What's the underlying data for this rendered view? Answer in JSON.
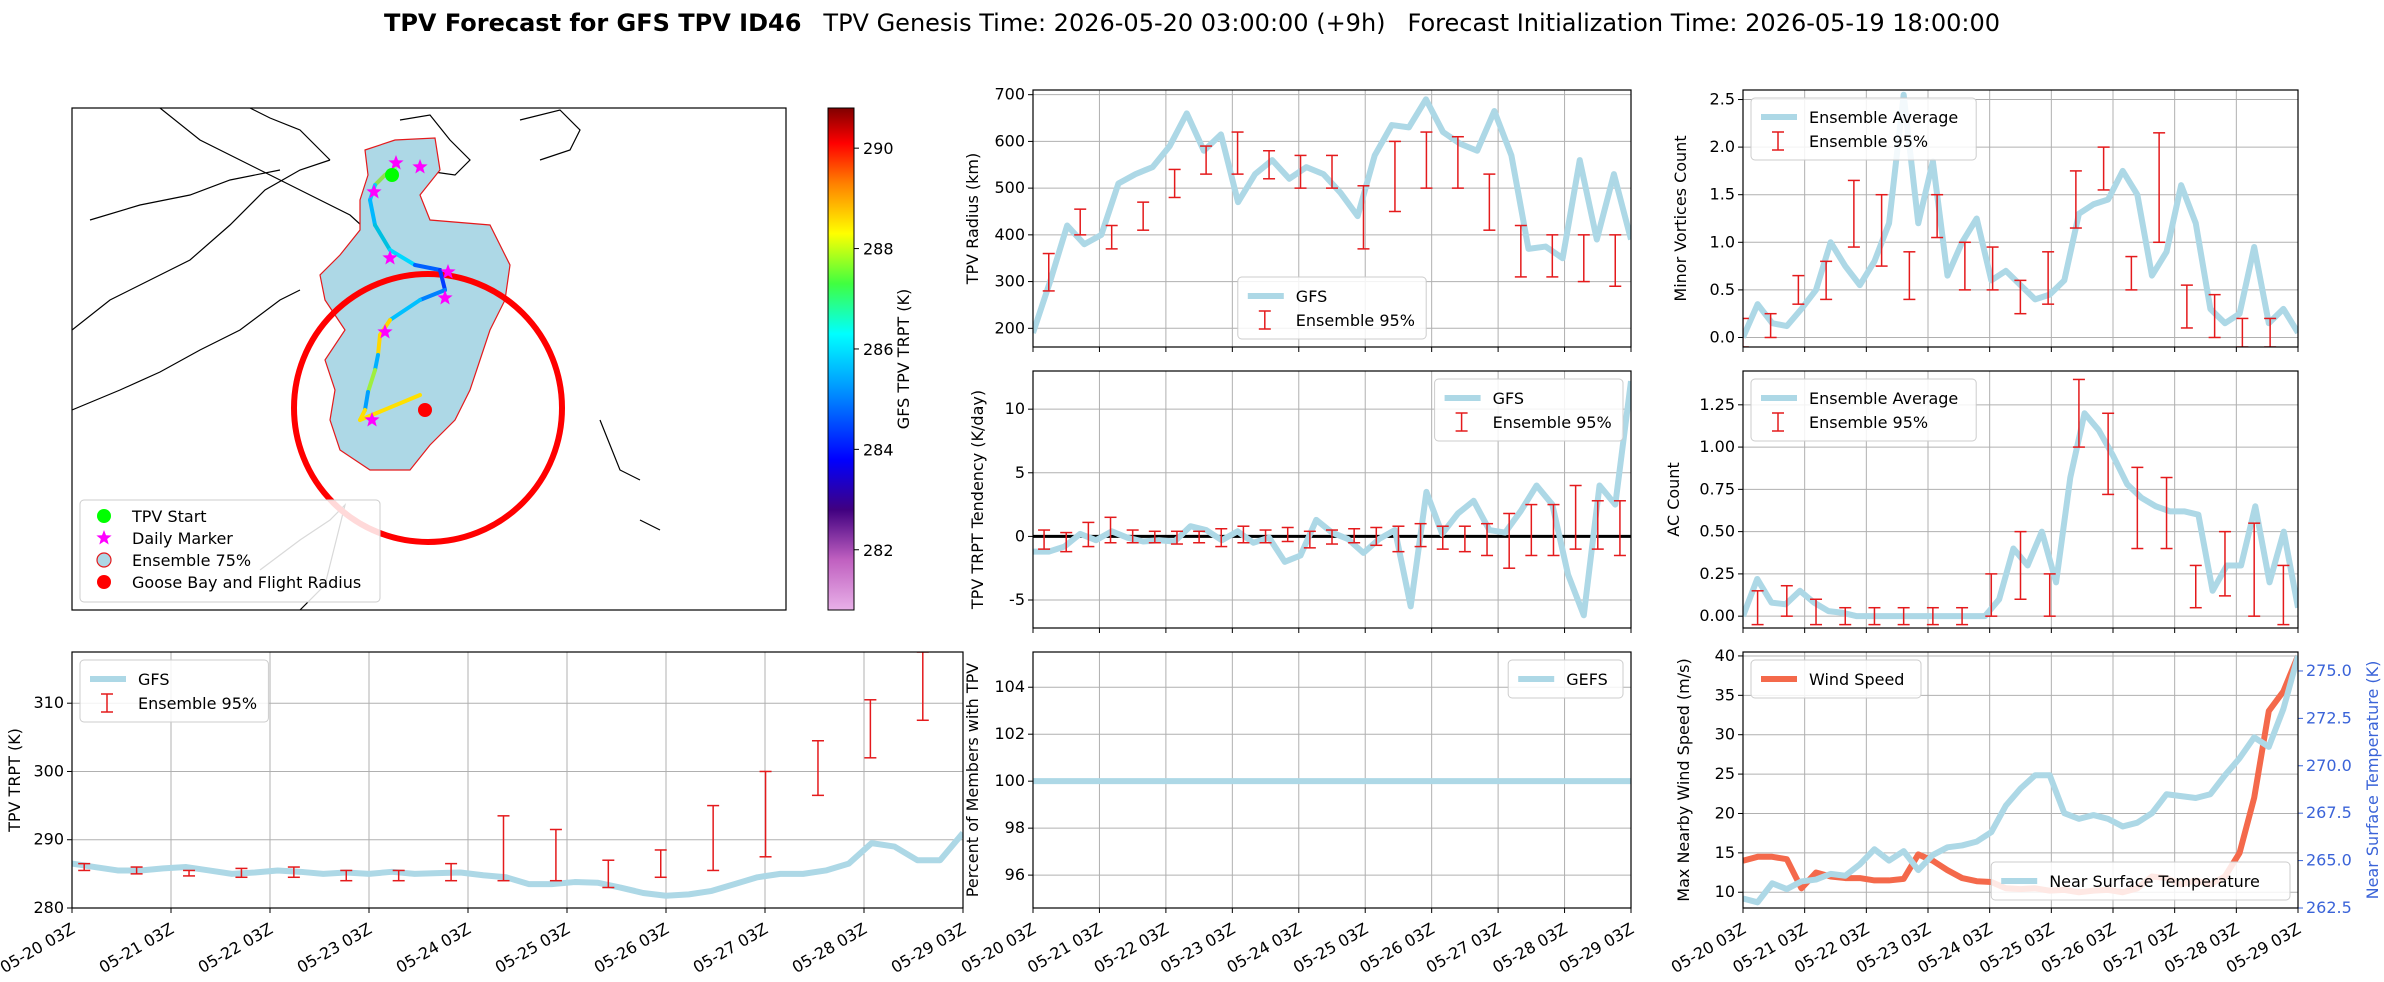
{
  "header": {
    "title_bold": "TPV Forecast for GFS TPV ID46",
    "title_genesis": "TPV Genesis Time: 2026-05-20 03:00:00 (+9h)",
    "title_init": "Forecast Initialization Time: 2026-05-19 18:00:00"
  },
  "colors": {
    "gfs_line": "#add8e6",
    "error_bar": "#e41a1c",
    "wind_line": "#f4694b",
    "temp_axis": "#3a63d8",
    "flight_circle": "#ff0000",
    "ensemble_fill": "#add8e6"
  },
  "time_axis": {
    "ticks": [
      "05-20 03Z",
      "05-21 03Z",
      "05-22 03Z",
      "05-23 03Z",
      "05-24 03Z",
      "05-25 03Z",
      "05-26 03Z",
      "05-27 03Z",
      "05-28 03Z",
      "05-29 03Z"
    ]
  },
  "map": {
    "colorbar_label": "GFS TPV TRPT (K)",
    "colorbar_range": [
      280.8,
      290.8
    ],
    "colorbar_ticks": [
      "282",
      "284",
      "286",
      "288",
      "290"
    ],
    "icons": [
      "tpv-start-icon",
      "daily-marker-icon",
      "ensemble-75-icon",
      "goose-bay-icon"
    ],
    "legend": {
      "tpv_start": "TPV Start",
      "daily_marker": "Daily Marker",
      "ensemble_75": "Ensemble 75%",
      "goose_bay": "Goose Bay and Flight Radius"
    }
  },
  "chart_data": [
    {
      "id": "tpv-radius",
      "type": "line",
      "ylabel": "TPV Radius (km)",
      "ylim": [
        160,
        710
      ],
      "yticks": [
        200,
        300,
        400,
        500,
        600,
        700
      ],
      "legend": [
        "GFS",
        "Ensemble 95%"
      ],
      "legend_position": "lower-center",
      "series": [
        {
          "name": "GFS",
          "values": [
            190,
            300,
            420,
            380,
            400,
            510,
            530,
            545,
            590,
            660,
            580,
            615,
            470,
            530,
            560,
            520,
            545,
            530,
            490,
            440,
            570,
            635,
            630,
            690,
            620,
            595,
            580,
            665,
            570,
            370,
            375,
            350,
            560,
            390,
            530,
            390
          ]
        }
      ],
      "errorbars": [
        [
          280,
          360
        ],
        [
          400,
          455
        ],
        [
          370,
          420
        ],
        [
          410,
          470
        ],
        [
          480,
          540
        ],
        [
          530,
          590
        ],
        [
          530,
          620
        ],
        [
          520,
          580
        ],
        [
          500,
          570
        ],
        [
          500,
          570
        ],
        [
          370,
          505
        ],
        [
          450,
          600
        ],
        [
          500,
          620
        ],
        [
          500,
          610
        ],
        [
          410,
          530
        ],
        [
          310,
          420
        ],
        [
          310,
          400
        ],
        [
          300,
          400
        ],
        [
          290,
          400
        ]
      ]
    },
    {
      "id": "minor-vortices",
      "type": "line",
      "ylabel": "Minor Vortices Count",
      "ylim": [
        -0.1,
        2.6
      ],
      "yticks": [
        "0.0",
        "0.5",
        "1.0",
        "1.5",
        "2.0",
        "2.5"
      ],
      "legend": [
        "Ensemble Average",
        "Ensemble 95%"
      ],
      "legend_position": "upper-left",
      "series": [
        {
          "name": "Ensemble Average",
          "values": [
            0.0,
            0.35,
            0.15,
            0.12,
            0.3,
            0.5,
            1.0,
            0.75,
            0.55,
            0.8,
            1.2,
            2.55,
            1.2,
            1.85,
            0.65,
            1.0,
            1.25,
            0.6,
            0.7,
            0.55,
            0.4,
            0.45,
            0.6,
            1.3,
            1.4,
            1.45,
            1.75,
            1.5,
            0.65,
            0.9,
            1.6,
            1.2,
            0.3,
            0.15,
            0.25,
            0.95,
            0.15,
            0.3,
            0.05
          ]
        }
      ],
      "errorbars": [
        [
          -0.1,
          0.2
        ],
        [
          0.0,
          0.25
        ],
        [
          0.35,
          0.65
        ],
        [
          0.4,
          0.8
        ],
        [
          0.95,
          1.65
        ],
        [
          0.75,
          1.5
        ],
        [
          0.4,
          0.9
        ],
        [
          1.05,
          1.5
        ],
        [
          0.5,
          1.0
        ],
        [
          0.5,
          0.95
        ],
        [
          0.25,
          0.6
        ],
        [
          0.35,
          0.9
        ],
        [
          1.15,
          1.75
        ],
        [
          1.55,
          2.0
        ],
        [
          0.5,
          0.85
        ],
        [
          1.0,
          2.15
        ],
        [
          0.1,
          0.55
        ],
        [
          0.0,
          0.45
        ],
        [
          -0.1,
          0.2
        ],
        [
          -0.1,
          0.2
        ]
      ]
    },
    {
      "id": "trpt-tendency",
      "type": "line",
      "ylabel": "TPV TRPT Tendency (K/day)",
      "ylim": [
        -7.2,
        13
      ],
      "yticks": [
        -5,
        0,
        5,
        10
      ],
      "legend": [
        "GFS",
        "Ensemble 95%"
      ],
      "legend_position": "upper-right",
      "series": [
        {
          "name": "GFS",
          "values": [
            -1.2,
            -1.2,
            -0.8,
            0.2,
            -0.3,
            0.4,
            -0.1,
            -0.4,
            -0.3,
            -0.4,
            0.8,
            0.5,
            -0.3,
            0.4,
            -0.5,
            -0.1,
            -2.0,
            -1.5,
            1.3,
            0.3,
            -0.2,
            -1.3,
            -0.2,
            0.5,
            -5.5,
            3.5,
            0.2,
            1.8,
            2.8,
            0.5,
            0.3,
            2.0,
            4.0,
            2.5,
            -3.0,
            -6.2,
            4.0,
            2.5,
            12.2
          ]
        }
      ],
      "errorbars": [
        [
          -1.0,
          0.5
        ],
        [
          -1.2,
          0.3
        ],
        [
          -0.8,
          1.1
        ],
        [
          -0.5,
          1.5
        ],
        [
          -0.5,
          0.5
        ],
        [
          -0.5,
          0.4
        ],
        [
          -0.6,
          0.4
        ],
        [
          -0.5,
          0.4
        ],
        [
          -0.8,
          0.6
        ],
        [
          -0.5,
          0.8
        ],
        [
          -0.5,
          0.5
        ],
        [
          -0.4,
          0.7
        ],
        [
          -0.9,
          0.4
        ],
        [
          -0.6,
          0.5
        ],
        [
          -0.5,
          0.6
        ],
        [
          -0.7,
          0.7
        ],
        [
          -1.2,
          0.8
        ],
        [
          -0.8,
          1.0
        ],
        [
          -1.0,
          0.8
        ],
        [
          -1.2,
          0.8
        ],
        [
          -1.5,
          1.0
        ],
        [
          -2.5,
          1.8
        ],
        [
          -1.5,
          2.5
        ],
        [
          -1.5,
          2.5
        ],
        [
          -1.0,
          4.0
        ],
        [
          -1.0,
          2.8
        ],
        [
          -1.5,
          2.8
        ]
      ]
    },
    {
      "id": "ac-count",
      "type": "line",
      "ylabel": "AC Count",
      "ylim": [
        -0.07,
        1.45
      ],
      "yticks": [
        "0.00",
        "0.25",
        "0.50",
        "0.75",
        "1.00",
        "1.25"
      ],
      "legend": [
        "Ensemble Average",
        "Ensemble 95%"
      ],
      "legend_position": "upper-left",
      "series": [
        {
          "name": "Ensemble Average",
          "values": [
            0.0,
            0.22,
            0.08,
            0.07,
            0.15,
            0.08,
            0.03,
            0.02,
            0.0,
            0.0,
            0.0,
            0.0,
            0.0,
            0.0,
            0.0,
            0.0,
            0.0,
            0.0,
            0.1,
            0.4,
            0.3,
            0.5,
            0.2,
            0.82,
            1.2,
            1.1,
            0.95,
            0.78,
            0.7,
            0.65,
            0.62,
            0.62,
            0.6,
            0.15,
            0.3,
            0.3,
            0.65,
            0.2,
            0.5,
            0.05
          ]
        }
      ],
      "errorbars": [
        [
          -0.05,
          0.15
        ],
        [
          0.0,
          0.18
        ],
        [
          -0.05,
          0.1
        ],
        [
          -0.05,
          0.05
        ],
        [
          -0.05,
          0.05
        ],
        [
          -0.05,
          0.05
        ],
        [
          -0.05,
          0.05
        ],
        [
          -0.05,
          0.05
        ],
        [
          0.0,
          0.25
        ],
        [
          0.1,
          0.5
        ],
        [
          0.0,
          0.25
        ],
        [
          1.0,
          1.4
        ],
        [
          0.72,
          1.2
        ],
        [
          0.4,
          0.88
        ],
        [
          0.4,
          0.82
        ],
        [
          0.05,
          0.3
        ],
        [
          0.12,
          0.5
        ],
        [
          0.0,
          0.55
        ],
        [
          -0.05,
          0.3
        ]
      ]
    },
    {
      "id": "tpv-trpt",
      "type": "line",
      "ylabel": "TPV TRPT (K)",
      "ylim": [
        280,
        317.5
      ],
      "yticks": [
        280,
        290,
        300,
        310
      ],
      "legend": [
        "GFS",
        "Ensemble 95%"
      ],
      "legend_position": "upper-left",
      "series": [
        {
          "name": "GFS",
          "values": [
            286.5,
            286.0,
            285.5,
            285.5,
            285.8,
            286.0,
            285.5,
            285.0,
            285.2,
            285.5,
            285.3,
            285.0,
            285.2,
            285.0,
            285.3,
            285.0,
            285.1,
            285.2,
            284.8,
            284.5,
            283.5,
            283.5,
            283.8,
            283.7,
            283.0,
            282.2,
            281.8,
            282.0,
            282.5,
            283.5,
            284.5,
            285.0,
            285.0,
            285.5,
            286.5,
            289.5,
            289.0,
            287.0,
            287.0,
            291.0
          ]
        }
      ],
      "errorbars": [
        [
          285.5,
          286.5
        ],
        [
          285.0,
          286.0
        ],
        [
          284.7,
          285.5
        ],
        [
          284.5,
          285.8
        ],
        [
          284.5,
          286.0
        ],
        [
          284.0,
          285.5
        ],
        [
          284.0,
          285.5
        ],
        [
          284.0,
          286.5
        ],
        [
          284.0,
          293.5
        ],
        [
          284.0,
          291.5
        ],
        [
          283.0,
          287.0
        ],
        [
          284.5,
          288.5
        ],
        [
          285.5,
          295.0
        ],
        [
          287.5,
          300.0
        ],
        [
          296.5,
          304.5
        ],
        [
          302.0,
          310.5
        ],
        [
          307.5,
          317.5
        ]
      ]
    },
    {
      "id": "percent-members",
      "type": "line",
      "ylabel": "Percent of Members with TPV",
      "ylim": [
        94.6,
        105.5
      ],
      "yticks": [
        96,
        98,
        100,
        102,
        104
      ],
      "legend": [
        "GEFS"
      ],
      "legend_position": "upper-right",
      "series": [
        {
          "name": "GEFS",
          "values": [
            100,
            100,
            100,
            100,
            100,
            100,
            100,
            100,
            100,
            100
          ]
        }
      ]
    },
    {
      "id": "wind-temp",
      "type": "line",
      "ylabel": "Max Nearby Wind Speed (m/s)",
      "ylabel_right": "Near Surface Temperature (K)",
      "ylim": [
        8,
        40.5
      ],
      "yticks": [
        10,
        15,
        20,
        25,
        30,
        35,
        40
      ],
      "ylim_right": [
        262.5,
        276.0
      ],
      "yticks_right": [
        "262.5",
        "265.0",
        "267.5",
        "270.0",
        "272.5",
        "275.0"
      ],
      "legend": [
        "Wind Speed"
      ],
      "legend_right": [
        "Near Surface Temperature"
      ],
      "legend_position": "upper-left",
      "legend_right_position": "lower-right",
      "series": [
        {
          "name": "Wind Speed",
          "values": [
            14.0,
            14.5,
            14.5,
            14.2,
            10.5,
            12.5,
            12.0,
            11.8,
            11.8,
            11.5,
            11.5,
            11.7,
            14.8,
            14.0,
            12.8,
            11.8,
            11.4,
            11.3,
            10.5,
            10.4,
            10.5,
            10.2,
            10.3,
            10.0,
            10.2,
            10.3,
            10.0,
            10.5,
            12.0,
            11.8,
            11.0,
            11.5,
            11.0,
            12.0,
            15.0,
            22.0,
            33.0,
            35.5,
            40.0
          ]
        },
        {
          "name": "Near Surface Temperature",
          "values": [
            263.0,
            262.8,
            263.8,
            263.5,
            263.9,
            264.0,
            264.3,
            264.2,
            264.8,
            265.6,
            265.0,
            265.5,
            264.5,
            265.3,
            265.7,
            265.8,
            266.0,
            266.5,
            267.9,
            268.8,
            269.5,
            269.5,
            267.5,
            267.2,
            267.4,
            267.2,
            266.8,
            267.0,
            267.5,
            268.5,
            268.4,
            268.3,
            268.5,
            269.5,
            270.4,
            271.5,
            271.0,
            273.0,
            275.8
          ]
        }
      ]
    }
  ]
}
